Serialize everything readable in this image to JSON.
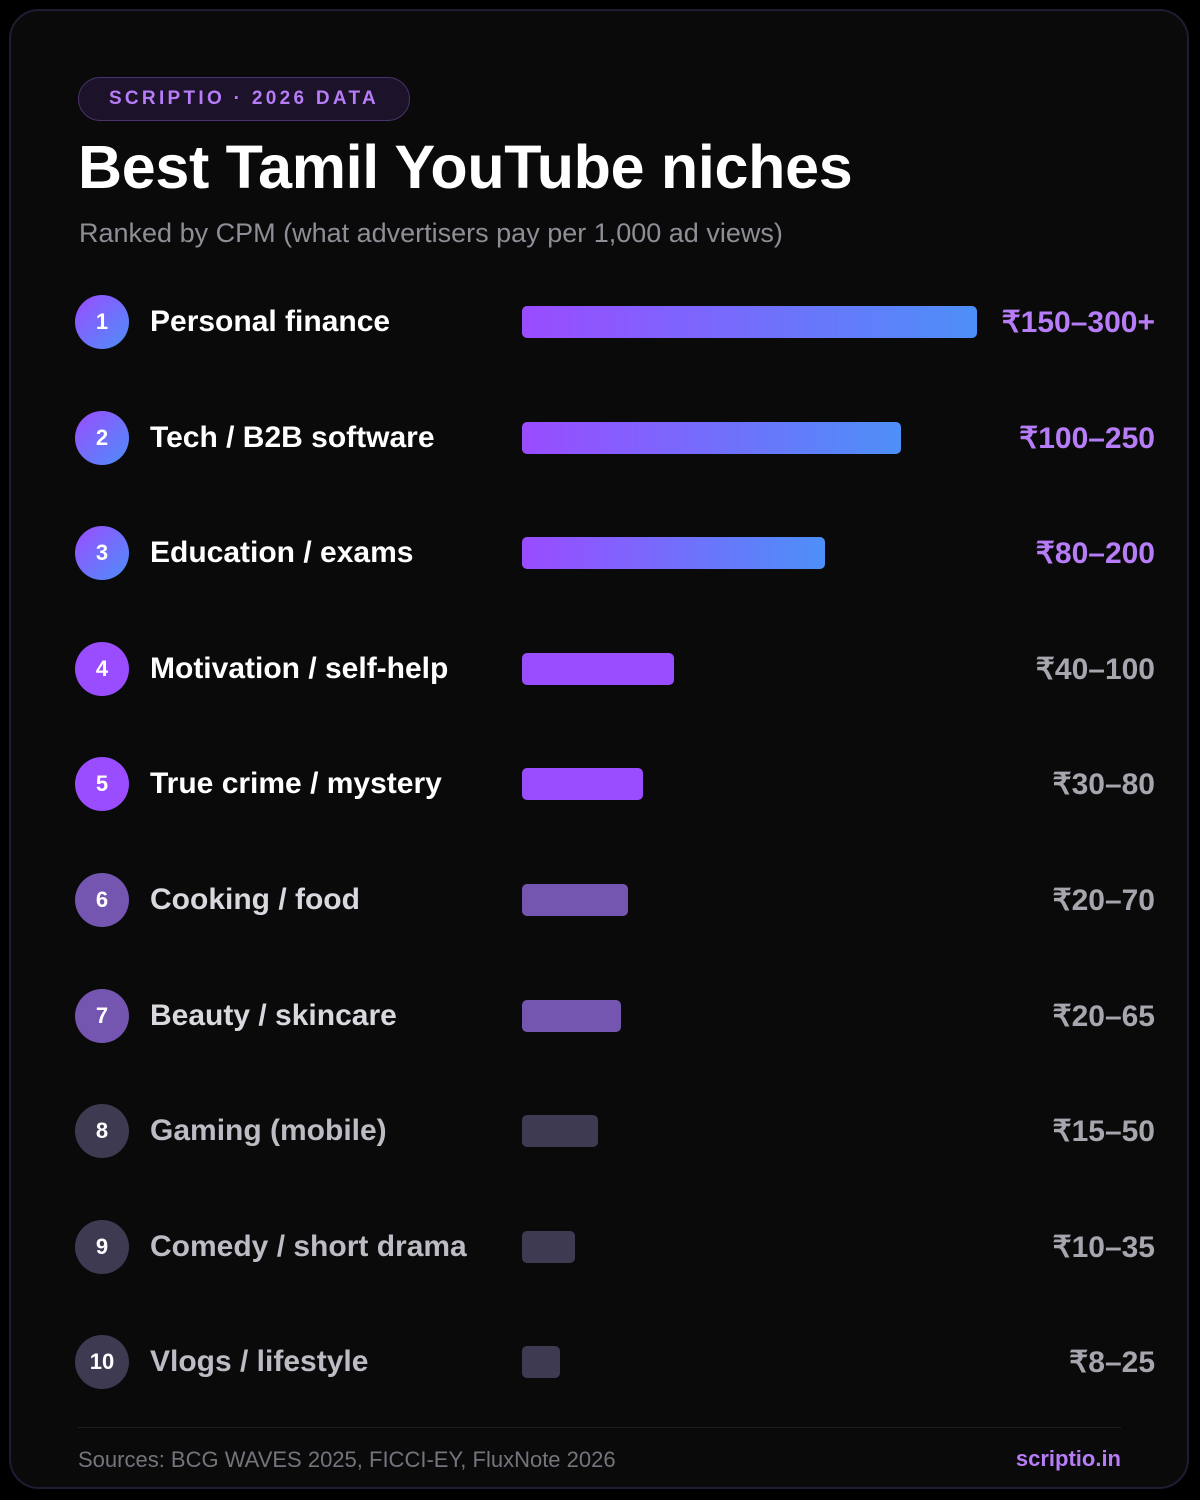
{
  "badge": "SCRIPTIO · 2026 DATA",
  "title": "Best Tamil YouTube niches",
  "subtitle": "Ranked by CPM (what advertisers pay per 1,000 ad views)",
  "footer": {
    "sources": "Sources: BCG WAVES 2025, FICCI-EY, FluxNote 2026",
    "brand": "scriptio.in"
  },
  "colors": {
    "accent_purple": "#9a4cff",
    "accent_blue": "#4d8ff8",
    "value_purple": "#b77cf7",
    "muted_purple": "#7455b0",
    "dim_slate": "#3e3a52",
    "value_gray": "#a6a6ae"
  },
  "chart_data": {
    "type": "bar",
    "orientation": "horizontal",
    "title": "Best Tamil YouTube niches",
    "subtitle": "Ranked by CPM (what advertisers pay per 1,000 ad views)",
    "unit": "₹",
    "items": [
      {
        "rank": "1",
        "label": "Personal finance",
        "value": "₹150–300+",
        "cpm_max": 300,
        "tier": "top"
      },
      {
        "rank": "2",
        "label": "Tech / B2B software",
        "value": "₹100–250",
        "cpm_max": 250,
        "tier": "top"
      },
      {
        "rank": "3",
        "label": "Education / exams",
        "value": "₹80–200",
        "cpm_max": 200,
        "tier": "top"
      },
      {
        "rank": "4",
        "label": "Motivation / self-help",
        "value": "₹40–100",
        "cpm_max": 100,
        "tier": "high"
      },
      {
        "rank": "5",
        "label": "True crime / mystery",
        "value": "₹30–80",
        "cpm_max": 80,
        "tier": "high"
      },
      {
        "rank": "6",
        "label": "Cooking / food",
        "value": "₹20–70",
        "cpm_max": 70,
        "tier": "mid"
      },
      {
        "rank": "7",
        "label": "Beauty / skincare",
        "value": "₹20–65",
        "cpm_max": 65,
        "tier": "mid"
      },
      {
        "rank": "8",
        "label": "Gaming (mobile)",
        "value": "₹15–50",
        "cpm_max": 50,
        "tier": "low"
      },
      {
        "rank": "9",
        "label": "Comedy / short drama",
        "value": "₹10–35",
        "cpm_max": 35,
        "tier": "low"
      },
      {
        "rank": "10",
        "label": "Vlogs / lifestyle",
        "value": "₹8–25",
        "cpm_max": 25,
        "tier": "low"
      }
    ]
  }
}
